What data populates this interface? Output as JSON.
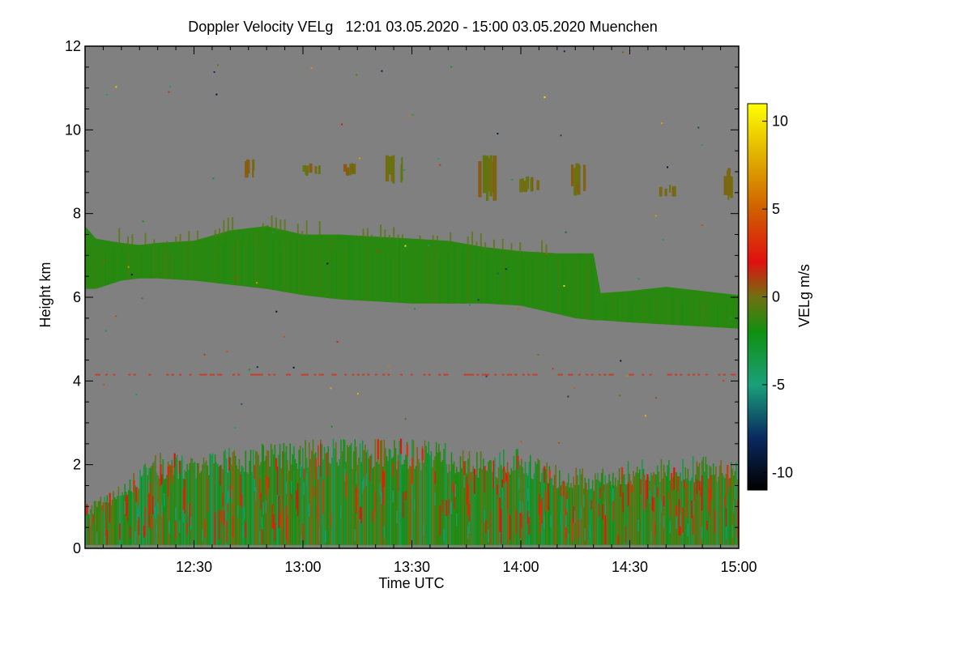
{
  "chart_data": {
    "type": "heatmap",
    "title": "Doppler Velocity VELg   12:01 03.05.2020 - 15:00 03.05.2020 Muenchen",
    "xlabel": "Time UTC",
    "ylabel": "Height km",
    "x_range_min": [
      720,
      900
    ],
    "x_ticks": [
      {
        "t": 750,
        "label": "12:30"
      },
      {
        "t": 780,
        "label": "13:00"
      },
      {
        "t": 810,
        "label": "13:30"
      },
      {
        "t": 840,
        "label": "14:00"
      },
      {
        "t": 870,
        "label": "14:30"
      },
      {
        "t": 900,
        "label": "15:00"
      }
    ],
    "ylim": [
      0,
      12
    ],
    "y_ticks": [
      {
        "v": 0,
        "label": "0"
      },
      {
        "v": 2,
        "label": "2"
      },
      {
        "v": 4,
        "label": "4"
      },
      {
        "v": 6,
        "label": "6"
      },
      {
        "v": 8,
        "label": "8"
      },
      {
        "v": 10,
        "label": "10"
      },
      {
        "v": 12,
        "label": "12"
      }
    ],
    "colorbar": {
      "label": "VELg m/s",
      "range": [
        -11,
        11
      ],
      "ticks": [
        {
          "v": 10,
          "label": "10"
        },
        {
          "v": 5,
          "label": "5"
        },
        {
          "v": 0,
          "label": "0"
        },
        {
          "v": -5,
          "label": "-5"
        },
        {
          "v": -10,
          "label": "-10"
        }
      ],
      "stops": [
        {
          "v": -11,
          "color": "#000000"
        },
        {
          "v": -8,
          "color": "#0a2a60"
        },
        {
          "v": -5,
          "color": "#1aa07a"
        },
        {
          "v": -2,
          "color": "#109010"
        },
        {
          "v": 0,
          "color": "#707010"
        },
        {
          "v": 2,
          "color": "#e01010"
        },
        {
          "v": 5,
          "color": "#d06000"
        },
        {
          "v": 8,
          "color": "#e0b000"
        },
        {
          "v": 11,
          "color": "#ffff00"
        }
      ]
    },
    "background_color": "#808080",
    "layers": [
      {
        "name": "mid-level cloud layer",
        "velocity_ms": -1.5,
        "t": [
          720,
          723,
          730,
          735,
          740,
          750,
          760,
          770,
          780,
          790,
          800,
          810,
          820,
          830,
          840,
          850,
          855,
          860,
          862,
          870,
          880,
          890,
          900
        ],
        "top_km": [
          7.7,
          7.4,
          7.3,
          7.25,
          7.3,
          7.35,
          7.6,
          7.7,
          7.5,
          7.5,
          7.45,
          7.4,
          7.35,
          7.2,
          7.1,
          7.05,
          7.05,
          7.05,
          6.1,
          6.15,
          6.25,
          6.15,
          6.05
        ],
        "bottom_km": [
          6.2,
          6.2,
          6.4,
          6.45,
          6.45,
          6.4,
          6.3,
          6.2,
          6.05,
          5.95,
          5.9,
          5.85,
          5.85,
          5.85,
          5.8,
          5.6,
          5.5,
          5.45,
          5.45,
          5.4,
          5.35,
          5.3,
          5.25
        ]
      }
    ],
    "high_cloud_patches": [
      {
        "t": 766,
        "top_km": 9.3,
        "bottom_km": 8.8,
        "velocity_ms": 0
      },
      {
        "t": 782,
        "top_km": 9.2,
        "bottom_km": 8.9,
        "velocity_ms": 0
      },
      {
        "t": 792,
        "top_km": 9.2,
        "bottom_km": 8.9,
        "velocity_ms": 0
      },
      {
        "t": 805,
        "top_km": 9.4,
        "bottom_km": 8.7,
        "velocity_ms": 0
      },
      {
        "t": 830,
        "top_km": 9.4,
        "bottom_km": 8.3,
        "velocity_ms": 0
      },
      {
        "t": 842,
        "top_km": 8.9,
        "bottom_km": 8.5,
        "velocity_ms": 0
      },
      {
        "t": 855,
        "top_km": 9.2,
        "bottom_km": 8.4,
        "velocity_ms": 0
      },
      {
        "t": 880,
        "top_km": 8.7,
        "bottom_km": 8.4,
        "velocity_ms": 0
      },
      {
        "t": 898,
        "top_km": 9.1,
        "bottom_km": 8.3,
        "velocity_ms": 0
      }
    ],
    "boundary_layer": {
      "name": "convective boundary layer",
      "t": [
        720,
        730,
        740,
        750,
        760,
        770,
        780,
        790,
        800,
        810,
        820,
        830,
        840,
        850,
        860,
        870,
        880,
        890,
        900
      ],
      "top_km": [
        1.0,
        1.5,
        2.2,
        2.2,
        2.3,
        2.4,
        2.5,
        2.5,
        2.5,
        2.5,
        2.4,
        2.2,
        2.3,
        1.9,
        1.8,
        2.0,
        2.1,
        2.1,
        2.0
      ],
      "velocity_range_ms": [
        -4,
        3
      ]
    },
    "clutter_line_km": 4.15
  }
}
